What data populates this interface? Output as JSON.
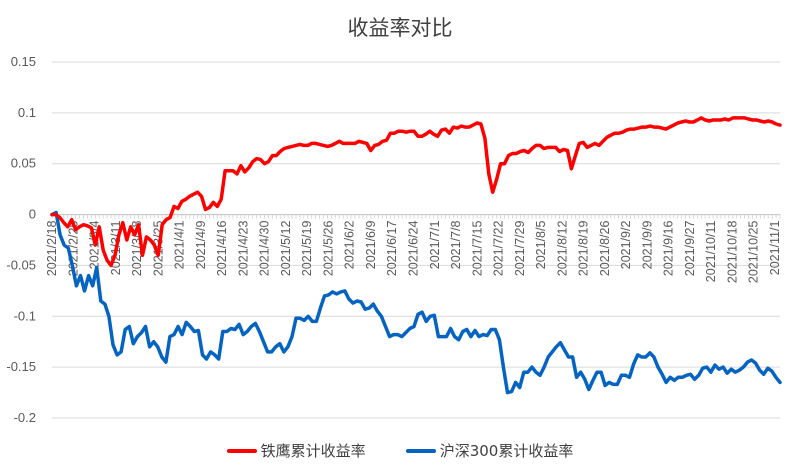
{
  "chart_data": {
    "type": "line",
    "title": "收益率对比",
    "xlabel": "",
    "ylabel": "",
    "ylim": [
      -0.2,
      0.15
    ],
    "yticks": [
      "0.15",
      "0.1",
      "0.05",
      "0",
      "-0.05",
      "-0.1",
      "-0.15",
      "-0.2"
    ],
    "grid": true,
    "legend_position": "bottom",
    "x_tick_labels": [
      "2021/2/18",
      "2021/2/25",
      "2021/3/4",
      "2021/3/11",
      "2021/3/18",
      "2021/3/25",
      "2021/4/1",
      "2021/4/9",
      "2021/4/16",
      "2021/4/23",
      "2021/4/30",
      "2021/5/12",
      "2021/5/19",
      "2021/5/26",
      "2021/6/2",
      "2021/6/9",
      "2021/6/17",
      "2021/6/24",
      "2021/7/1",
      "2021/7/8",
      "2021/7/15",
      "2021/7/22",
      "2021/7/29",
      "2021/8/5",
      "2021/8/12",
      "2021/8/19",
      "2021/8/26",
      "2021/9/2",
      "2021/9/9",
      "2021/9/16",
      "2021/9/27",
      "2021/10/11",
      "2021/10/18",
      "2021/10/25",
      "2021/11/1"
    ],
    "series": [
      {
        "name": "铁鹰累计收益率",
        "color": "#FF0000",
        "values": [
          0,
          0,
          -0.003,
          -0.008,
          -0.012,
          -0.005,
          -0.015,
          -0.012,
          -0.01,
          -0.011,
          -0.013,
          -0.03,
          -0.012,
          -0.035,
          -0.045,
          -0.05,
          -0.04,
          -0.02,
          -0.008,
          -0.025,
          -0.012,
          -0.02,
          -0.01,
          -0.04,
          -0.022,
          -0.025,
          -0.03,
          -0.04,
          -0.01,
          -0.005,
          -0.003,
          0.008,
          0.006,
          0.013,
          0.015,
          0.018,
          0.02,
          0.022,
          0.018,
          0.005,
          0.007,
          0.012,
          0.008,
          0.015,
          0.043,
          0.043,
          0.043,
          0.04,
          0.048,
          0.042,
          0.046,
          0.052,
          0.055,
          0.054,
          0.05,
          0.052,
          0.058,
          0.058,
          0.062,
          0.065,
          0.066,
          0.067,
          0.068,
          0.069,
          0.068,
          0.068,
          0.07,
          0.07,
          0.069,
          0.068,
          0.067,
          0.068,
          0.07,
          0.072,
          0.07,
          0.07,
          0.07,
          0.07,
          0.072,
          0.071,
          0.07,
          0.063,
          0.068,
          0.069,
          0.072,
          0.073,
          0.08,
          0.08,
          0.082,
          0.082,
          0.081,
          0.082,
          0.082,
          0.077,
          0.077,
          0.079,
          0.082,
          0.079,
          0.077,
          0.083,
          0.084,
          0.08,
          0.086,
          0.085,
          0.087,
          0.086,
          0.086,
          0.088,
          0.09,
          0.089,
          0.075,
          0.04,
          0.022,
          0.035,
          0.05,
          0.05,
          0.058,
          0.06,
          0.06,
          0.062,
          0.063,
          0.061,
          0.065,
          0.068,
          0.068,
          0.065,
          0.066,
          0.066,
          0.066,
          0.062,
          0.064,
          0.063,
          0.045,
          0.058,
          0.07,
          0.071,
          0.066,
          0.068,
          0.07,
          0.068,
          0.072,
          0.076,
          0.078,
          0.08,
          0.08,
          0.081,
          0.083,
          0.084,
          0.084,
          0.085,
          0.086,
          0.086,
          0.087,
          0.086,
          0.086,
          0.085,
          0.084,
          0.086,
          0.088,
          0.09,
          0.091,
          0.092,
          0.091,
          0.091,
          0.093,
          0.095,
          0.093,
          0.092,
          0.093,
          0.093,
          0.093,
          0.094,
          0.093,
          0.095,
          0.095,
          0.095,
          0.095,
          0.094,
          0.093,
          0.093,
          0.092,
          0.091,
          0.092,
          0.091,
          0.089,
          0.088
        ]
      },
      {
        "name": "沪深300累计收益率",
        "color": "#0563C1",
        "values": [
          0,
          0.002,
          -0.02,
          -0.03,
          -0.033,
          -0.05,
          -0.07,
          -0.06,
          -0.075,
          -0.06,
          -0.07,
          -0.052,
          -0.085,
          -0.088,
          -0.1,
          -0.128,
          -0.138,
          -0.135,
          -0.113,
          -0.11,
          -0.127,
          -0.12,
          -0.116,
          -0.11,
          -0.13,
          -0.125,
          -0.13,
          -0.14,
          -0.145,
          -0.12,
          -0.118,
          -0.11,
          -0.118,
          -0.106,
          -0.11,
          -0.115,
          -0.114,
          -0.138,
          -0.142,
          -0.135,
          -0.138,
          -0.142,
          -0.115,
          -0.115,
          -0.112,
          -0.113,
          -0.108,
          -0.118,
          -0.115,
          -0.11,
          -0.107,
          -0.115,
          -0.125,
          -0.135,
          -0.135,
          -0.13,
          -0.127,
          -0.135,
          -0.13,
          -0.12,
          -0.102,
          -0.102,
          -0.104,
          -0.1,
          -0.105,
          -0.105,
          -0.092,
          -0.08,
          -0.079,
          -0.076,
          -0.078,
          -0.076,
          -0.075,
          -0.083,
          -0.087,
          -0.085,
          -0.086,
          -0.093,
          -0.092,
          -0.088,
          -0.095,
          -0.1,
          -0.11,
          -0.12,
          -0.118,
          -0.118,
          -0.12,
          -0.116,
          -0.112,
          -0.11,
          -0.098,
          -0.096,
          -0.105,
          -0.1,
          -0.099,
          -0.12,
          -0.12,
          -0.12,
          -0.112,
          -0.12,
          -0.123,
          -0.115,
          -0.113,
          -0.12,
          -0.114,
          -0.12,
          -0.118,
          -0.119,
          -0.113,
          -0.113,
          -0.123,
          -0.15,
          -0.175,
          -0.174,
          -0.165,
          -0.17,
          -0.155,
          -0.155,
          -0.15,
          -0.155,
          -0.158,
          -0.15,
          -0.14,
          -0.135,
          -0.13,
          -0.126,
          -0.133,
          -0.14,
          -0.14,
          -0.16,
          -0.155,
          -0.162,
          -0.172,
          -0.163,
          -0.155,
          -0.155,
          -0.168,
          -0.165,
          -0.167,
          -0.167,
          -0.158,
          -0.158,
          -0.16,
          -0.147,
          -0.138,
          -0.14,
          -0.14,
          -0.136,
          -0.14,
          -0.15,
          -0.157,
          -0.165,
          -0.16,
          -0.163,
          -0.16,
          -0.16,
          -0.158,
          -0.157,
          -0.162,
          -0.158,
          -0.151,
          -0.15,
          -0.155,
          -0.148,
          -0.152,
          -0.15,
          -0.156,
          -0.152,
          -0.155,
          -0.153,
          -0.15,
          -0.145,
          -0.143,
          -0.146,
          -0.153,
          -0.157,
          -0.151,
          -0.154,
          -0.16,
          -0.165
        ]
      }
    ]
  },
  "legend": {
    "items": [
      {
        "label": "铁鹰累计收益率",
        "color": "#FF0000"
      },
      {
        "label": "沪深300累计收益率",
        "color": "#0563C1"
      }
    ]
  }
}
